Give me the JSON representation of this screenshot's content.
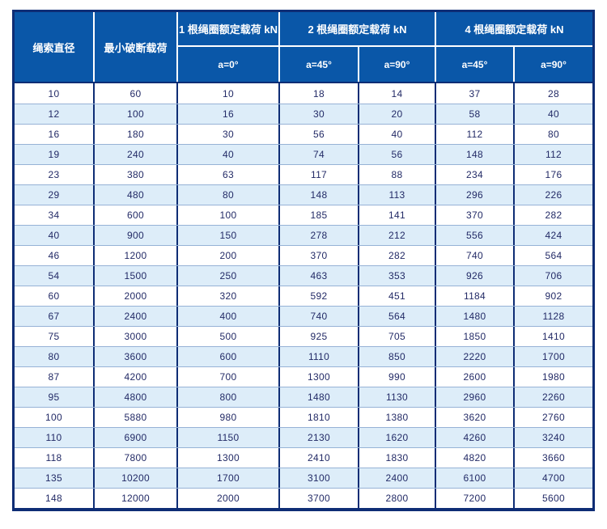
{
  "colors": {
    "header_blue": "#0a57a8",
    "border_navy": "#0e2d75",
    "row_alt_blue": "#ddedf9",
    "row_separator": "#96b2d6",
    "body_text_navy": "#222a66",
    "header_text": "#ffffff"
  },
  "chart_data": {
    "type": "table",
    "title": "",
    "header": {
      "col_diameter": "绳索直径",
      "col_min_break": "最小破断载荷",
      "groups": [
        {
          "label": "1 根绳圈额定载荷 kN",
          "subs": [
            "a=0°"
          ]
        },
        {
          "label": "2 根绳圈额定载荷 kN",
          "subs": [
            "a=45°",
            "a=90°"
          ]
        },
        {
          "label": "4 根绳圈额定载荷 kN",
          "subs": [
            "a=45°",
            "a=90°"
          ]
        }
      ],
      "flat_columns": [
        "绳索直径",
        "最小破断载荷",
        "1根绳圈额定载荷kN a=0°",
        "2根绳圈额定载荷kN a=45°",
        "2根绳圈额定载荷kN a=90°",
        "4根绳圈额定载荷kN a=45°",
        "4根绳圈额定载荷kN a=90°"
      ]
    },
    "rows": [
      [
        10,
        60,
        10,
        18,
        14,
        37,
        28
      ],
      [
        12,
        100,
        16,
        30,
        20,
        58,
        40
      ],
      [
        16,
        180,
        30,
        56,
        40,
        112,
        80
      ],
      [
        19,
        240,
        40,
        74,
        56,
        148,
        112
      ],
      [
        23,
        380,
        63,
        117,
        88,
        234,
        176
      ],
      [
        29,
        480,
        80,
        148,
        113,
        296,
        226
      ],
      [
        34,
        600,
        100,
        185,
        141,
        370,
        282
      ],
      [
        40,
        900,
        150,
        278,
        212,
        556,
        424
      ],
      [
        46,
        1200,
        200,
        370,
        282,
        740,
        564
      ],
      [
        54,
        1500,
        250,
        463,
        353,
        926,
        706
      ],
      [
        60,
        2000,
        320,
        592,
        451,
        1184,
        902
      ],
      [
        67,
        2400,
        400,
        740,
        564,
        1480,
        1128
      ],
      [
        75,
        3000,
        500,
        925,
        705,
        1850,
        1410
      ],
      [
        80,
        3600,
        600,
        1110,
        850,
        2220,
        1700
      ],
      [
        87,
        4200,
        700,
        1300,
        990,
        2600,
        1980
      ],
      [
        95,
        4800,
        800,
        1480,
        1130,
        2960,
        2260
      ],
      [
        100,
        5880,
        980,
        1810,
        1380,
        3620,
        2760
      ],
      [
        110,
        6900,
        1150,
        2130,
        1620,
        4260,
        3240
      ],
      [
        118,
        7800,
        1300,
        2410,
        1830,
        4820,
        3660
      ],
      [
        135,
        10200,
        1700,
        3100,
        2400,
        6100,
        4700
      ],
      [
        148,
        12000,
        2000,
        3700,
        2800,
        7200,
        5600
      ]
    ]
  }
}
